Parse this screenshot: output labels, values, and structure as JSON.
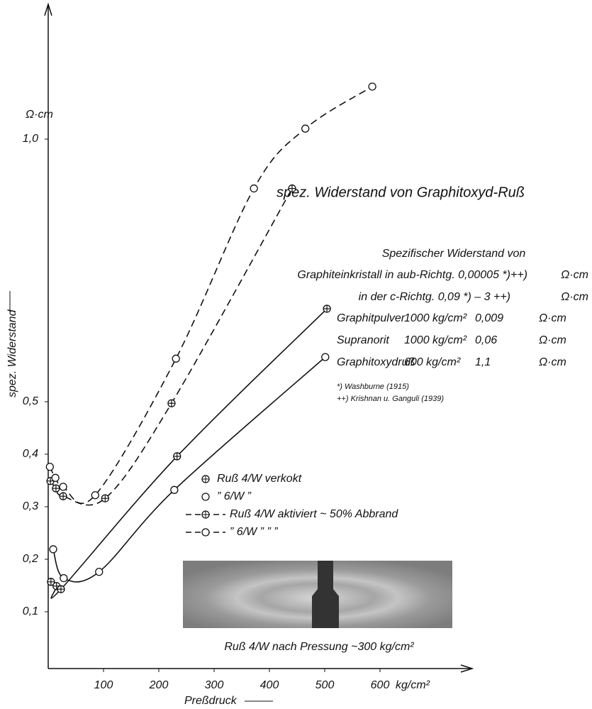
{
  "chart_data": {
    "type": "line",
    "title": "spez. Widerstand von Graphitoxyd-Ruß",
    "x_label": "Preßdruck",
    "x_unit": "kg/cm²",
    "y_label": "spez. Widerstand",
    "y_unit": "Ω·cm",
    "xlim": [
      0,
      700
    ],
    "ylim": [
      0,
      1.25
    ],
    "xticks": [
      100,
      200,
      300,
      400,
      500,
      600
    ],
    "yticks": [
      {
        "value": 0.1,
        "label": "0,1"
      },
      {
        "value": 0.2,
        "label": "0,2"
      },
      {
        "value": 0.3,
        "label": "0,3"
      },
      {
        "value": 0.4,
        "label": "0,4"
      },
      {
        "value": 0.5,
        "label": "0,5"
      },
      {
        "value": 1.0,
        "label": "1,0"
      }
    ],
    "series": [
      {
        "name": "Ruß 4/W verkokt",
        "color": "#111111",
        "marker": "circle-plus",
        "dashed": false,
        "x": [
          5,
          15,
          23,
          233,
          504
        ],
        "values": [
          0.157,
          0.149,
          0.143,
          0.396,
          0.677
        ]
      },
      {
        "name": "” 6/W ”",
        "color": "#111111",
        "marker": "circle",
        "dashed": false,
        "x": [
          9,
          28,
          92,
          228,
          501
        ],
        "values": [
          0.219,
          0.164,
          0.176,
          0.332,
          0.585
        ]
      },
      {
        "name": "Ruß 4/W aktiviert ~ 50% Abbrand",
        "color": "#111111",
        "marker": "circle-plus",
        "dashed": true,
        "x": [
          4,
          14,
          27,
          103,
          223,
          441
        ],
        "values": [
          0.349,
          0.335,
          0.32,
          0.316,
          0.497,
          0.906
        ]
      },
      {
        "name": "” 6/W ” ” ”",
        "color": "#111111",
        "marker": "circle",
        "dashed": true,
        "x": [
          3,
          13,
          27,
          85,
          231,
          372,
          465,
          586
        ],
        "values": [
          0.376,
          0.355,
          0.338,
          0.322,
          0.582,
          0.906,
          1.02,
          1.1
        ]
      }
    ],
    "resistivity_table": {
      "heading": "Spezifischer Widerstand von",
      "crystal_rows": [
        [
          "Graphiteinkristall in aub-Richtg. 0,00005 *)++)",
          "Ω·cm"
        ],
        [
          "in der c-Richtg. 0,09 *) – 3 ++)",
          "Ω·cm"
        ]
      ],
      "rows": [
        [
          "Graphitpulver",
          "1000 kg/cm²",
          "0,009",
          "Ω·cm"
        ],
        [
          "Supranorit",
          "1000 kg/cm²",
          "0,06",
          "Ω·cm"
        ],
        [
          "Graphitoxydruß",
          "600 kg/cm²",
          "1,1",
          "Ω·cm"
        ]
      ],
      "footnotes": [
        "*) Washburne (1915)",
        "++) Krishnan u. Ganguli (1939)"
      ]
    },
    "photo_caption": "Ruß 4/W nach Pressung ~300 kg/cm²"
  }
}
